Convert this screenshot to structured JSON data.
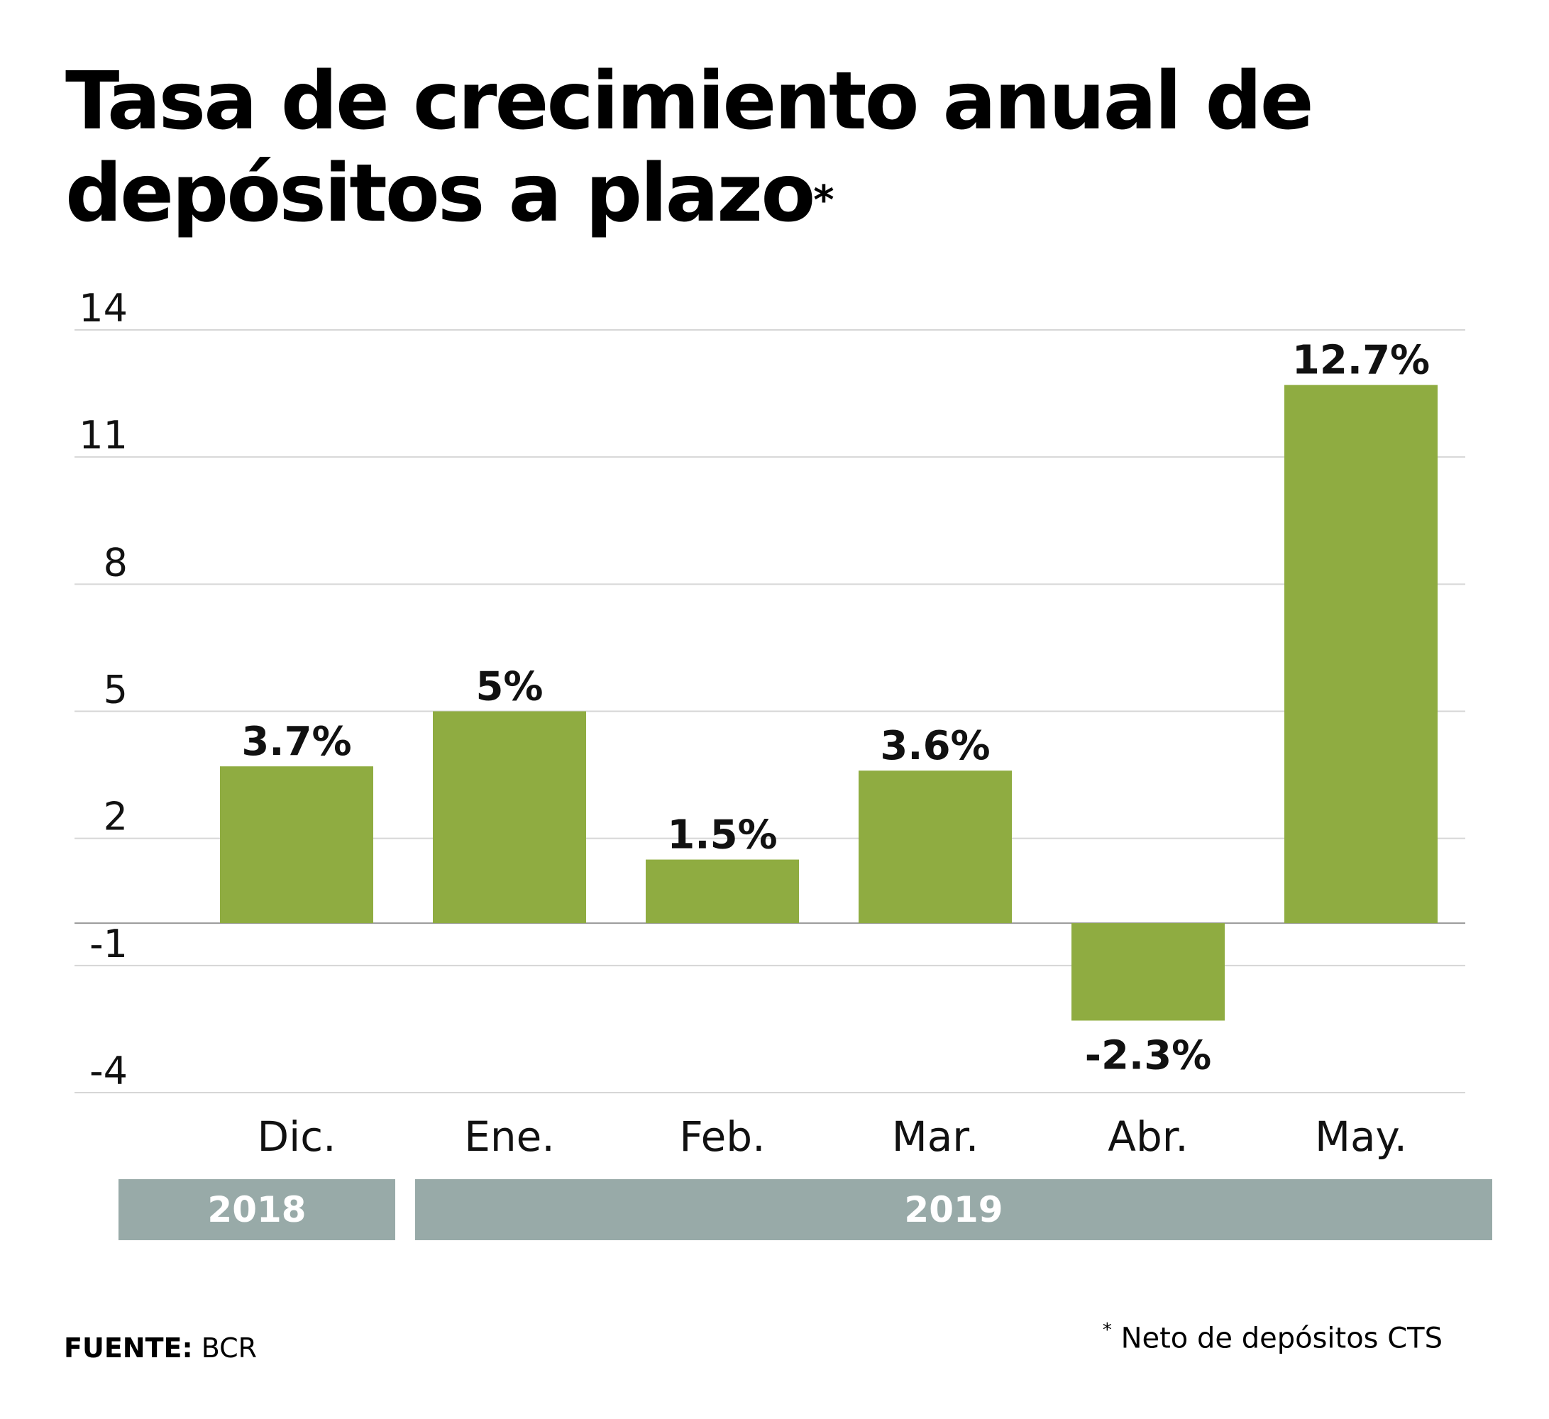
{
  "title": {
    "line1": "Tasa de crecimiento anual de",
    "line2": "depósitos a plazo",
    "marker": "*"
  },
  "source": {
    "label": "FUENTE:",
    "value": "BCR"
  },
  "footnote": {
    "marker": "*",
    "text": "Neto de depósitos CTS"
  },
  "colors": {
    "bar": "#8fac41",
    "year_band": "#98aaa8",
    "grid": "#d6d6d6",
    "baseline": "#9a9a9a"
  },
  "chart_data": {
    "type": "bar",
    "categories": [
      "Dic.",
      "Ene.",
      "Feb.",
      "Mar.",
      "Abr.",
      "May."
    ],
    "values": [
      3.7,
      5,
      1.5,
      3.6,
      -2.3,
      12.7
    ],
    "data_labels": [
      "3.7%",
      "5%",
      "1.5%",
      "3.6%",
      "-2.3%",
      "12.7%"
    ],
    "yticks": [
      "14",
      "11",
      "8",
      "5",
      "2",
      "-1",
      "-4"
    ],
    "ytick_values": [
      14,
      11,
      8,
      5,
      2,
      -1,
      -4
    ],
    "ylim": [
      -4,
      14
    ],
    "grid": true,
    "year_groups": [
      {
        "label": "2018",
        "categories": [
          "Dic."
        ]
      },
      {
        "label": "2019",
        "categories": [
          "Ene.",
          "Feb.",
          "Mar.",
          "Abr.",
          "May."
        ]
      }
    ]
  }
}
